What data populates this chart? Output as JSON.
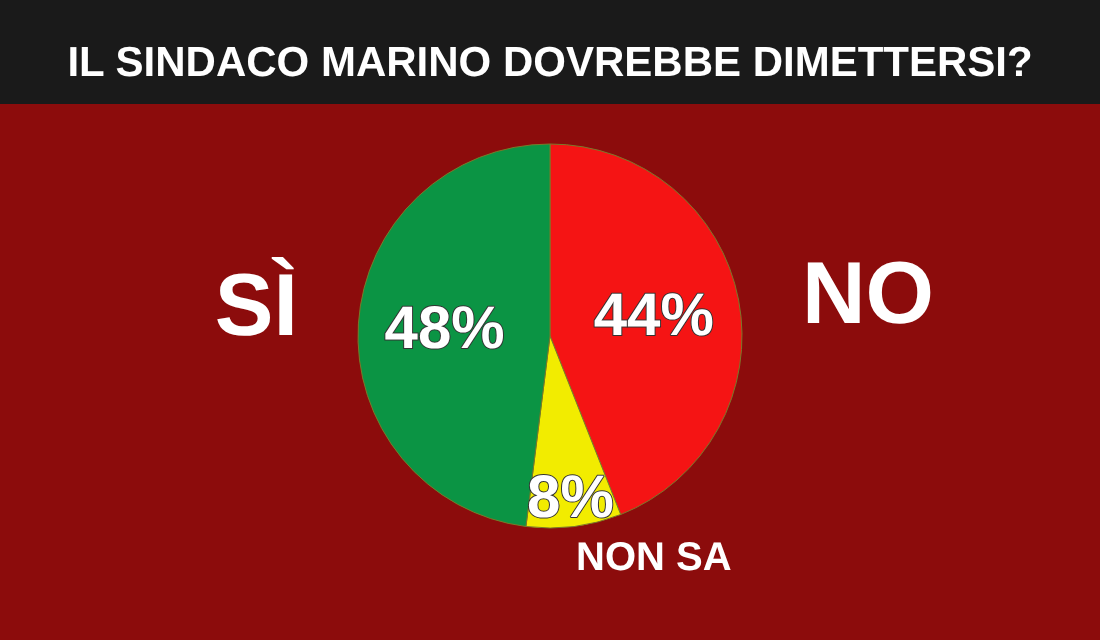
{
  "chart_data": {
    "type": "pie",
    "title": "IL SINDACO MARINO DOVREBBE DIMETTERSI?",
    "categories": [
      "NO",
      "NON SA",
      "SÌ"
    ],
    "values": [
      44,
      8,
      48
    ],
    "value_labels": [
      "44%",
      "8%",
      "48%"
    ],
    "colors": [
      "#f51414",
      "#f2ec00",
      "#0b9444"
    ],
    "legend": false
  }
}
